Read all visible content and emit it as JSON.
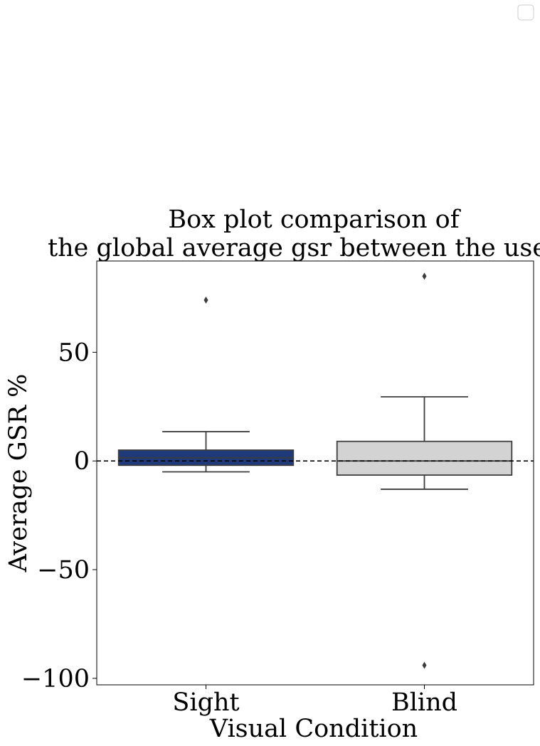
{
  "chart_data": {
    "type": "box",
    "title_line1": "Box plot comparison of",
    "title_line2": "the global average gsr between the users.",
    "xlabel": "Visual Condition",
    "ylabel": "Average GSR %",
    "ylim": [
      -103,
      92
    ],
    "yticks": [
      {
        "value": 50,
        "label": "50"
      },
      {
        "value": 0,
        "label": "0"
      },
      {
        "value": -50,
        "label": "−50"
      },
      {
        "value": -100,
        "label": "−100"
      }
    ],
    "reference_line": {
      "value": 0,
      "style": "dashed",
      "color": "#000000"
    },
    "legend": {
      "placement": "upper-right",
      "entries": []
    },
    "boxes": [
      {
        "category": "Sight",
        "color": "#1f3a7a",
        "whisker_low": -5,
        "q1": -2,
        "median": 1.5,
        "q3": 5,
        "whisker_high": 13.5,
        "outliers": [
          74
        ]
      },
      {
        "category": "Blind",
        "color": "#d3d3d3",
        "whisker_low": -13,
        "q1": -6.5,
        "median": 0,
        "q3": 9,
        "whisker_high": 29.5,
        "outliers": [
          85,
          -94
        ]
      }
    ]
  }
}
